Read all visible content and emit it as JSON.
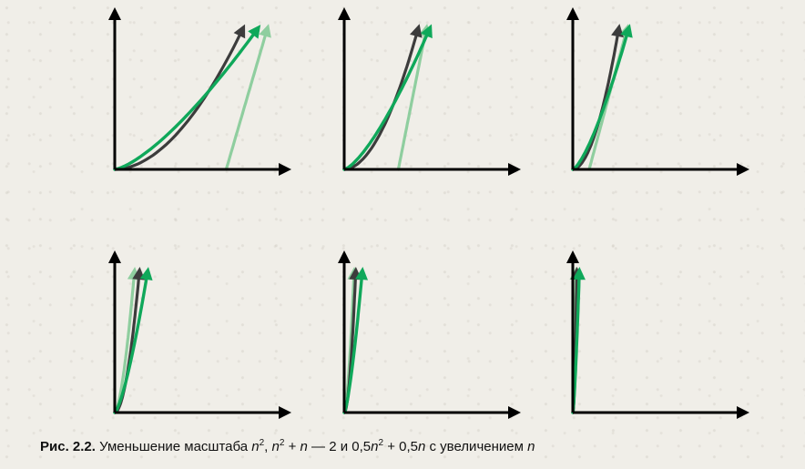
{
  "colors": {
    "axis": "#000000",
    "n_squared": "#3c3c3c",
    "n_squared_plus_n_minus_2": "#0fa85a",
    "half_n_squared_plus_half_n": "#8fce9f"
  },
  "caption": {
    "label": "Рис. 2.2.",
    "text_1": " Уменьшение масштаба ",
    "n1": "n",
    "sup1": "2",
    "sep1": ", ",
    "n2": "n",
    "sup2": "2",
    "text_2": " + ",
    "n3": "n",
    "text_3": " — 2 и 0,5",
    "n4": "n",
    "sup3": "2",
    "text_4": " + 0,5",
    "n5": "n",
    "text_5": " с увеличением ",
    "n6": "n"
  },
  "chart_data": {
    "type": "line",
    "description_series": [
      {
        "name": "n^2",
        "color": "#3c3c3c"
      },
      {
        "name": "n^2 + n - 2",
        "color": "#0fa85a"
      },
      {
        "name": "0.5n^2 + 0.5n",
        "color": "#8fce9f"
      }
    ],
    "panels": [
      {
        "id": "panel-1",
        "faint_x_start": 0.68,
        "dark_end_x": 0.78,
        "green_end_x": 0.87,
        "faint_end_x": 0.93
      },
      {
        "id": "panel-2",
        "faint_x_start": 0.33,
        "dark_end_x": 0.45,
        "green_end_x": 0.52,
        "faint_end_x": 0.5
      },
      {
        "id": "panel-3",
        "faint_x_start": 0.1,
        "dark_end_x": 0.28,
        "green_end_x": 0.34,
        "faint_end_x": 0.33
      },
      {
        "id": "panel-4",
        "faint_x_start": 0.0,
        "dark_end_x": 0.15,
        "green_end_x": 0.2,
        "faint_end_x": 0.12
      },
      {
        "id": "panel-5",
        "faint_x_start": 0.0,
        "dark_end_x": 0.07,
        "green_end_x": 0.11,
        "faint_end_x": 0.06
      },
      {
        "id": "panel-6",
        "faint_x_start": 0.0,
        "dark_end_x": 0.025,
        "green_end_x": 0.04,
        "faint_end_x": 0.02
      }
    ]
  }
}
